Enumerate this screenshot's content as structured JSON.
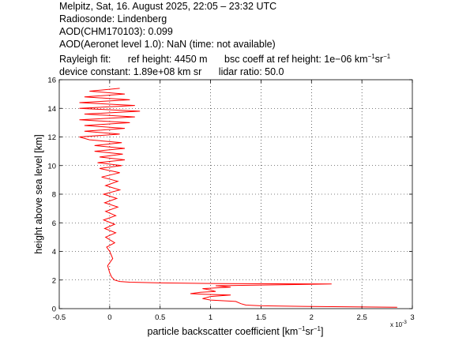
{
  "header": {
    "line1": "Melpitz, Sat, 16. August 2025, 22:05 – 23:32 UTC",
    "line2": "Radiosonde: Lindenberg",
    "line3": "AOD(CHM170103): 0.099",
    "line4": "AOD(Aeronet level 1.0): NaN   (time: not available)",
    "rayleigh_label": "Rayleigh fit:",
    "ref_height": "ref height: 4450 m",
    "bsc_coeff_prefix": "bsc coeff at ref height: 1e−06 km",
    "bsc_sup1": "−1",
    "bsc_mid": "sr",
    "bsc_sup2": "−1",
    "device_constant": "device constant: 1.89e+08 km sr",
    "lidar_ratio": "lidar ratio: 50.0"
  },
  "chart_data": {
    "type": "line",
    "xlabel_prefix": "particle backscatter coefficient [km",
    "xlabel_sup1": "−1",
    "xlabel_mid": "sr",
    "xlabel_sup2": "−1",
    "xlabel_suffix": "]",
    "ylabel": "height above sea level [km]",
    "x_exponent_base": "x 10",
    "x_exponent_power": "-3",
    "xlim": [
      -0.5,
      3
    ],
    "ylim": [
      0,
      16
    ],
    "xticks": [
      -0.5,
      0,
      0.5,
      1,
      1.5,
      2,
      2.5,
      3
    ],
    "xtick_labels": [
      "-0.5",
      "0",
      "0.5",
      "1",
      "1.5",
      "2",
      "2.5",
      "3"
    ],
    "yticks": [
      0,
      2,
      4,
      6,
      8,
      10,
      12,
      14,
      16
    ],
    "ytick_labels": [
      "0",
      "2",
      "4",
      "6",
      "8",
      "10",
      "12",
      "14",
      "16"
    ],
    "grid": true,
    "line_color": "#ff0000",
    "series": [
      {
        "points": [
          [
            2.85,
            0.1
          ],
          [
            2.0,
            0.15
          ],
          [
            1.5,
            0.2
          ],
          [
            1.35,
            0.25
          ],
          [
            1.3,
            0.35
          ],
          [
            1.25,
            0.5
          ],
          [
            1.0,
            0.6
          ],
          [
            0.92,
            0.7
          ],
          [
            1.0,
            0.85
          ],
          [
            1.2,
            0.95
          ],
          [
            0.95,
            1.0
          ],
          [
            0.8,
            1.05
          ],
          [
            0.9,
            1.15
          ],
          [
            1.05,
            1.2
          ],
          [
            1.0,
            1.3
          ],
          [
            0.92,
            1.4
          ],
          [
            1.2,
            1.5
          ],
          [
            1.05,
            1.6
          ],
          [
            2.2,
            1.72
          ],
          [
            1.1,
            1.75
          ],
          [
            0.5,
            1.8
          ],
          [
            0.2,
            1.85
          ],
          [
            0.1,
            1.9
          ],
          [
            0.05,
            2.0
          ],
          [
            0.02,
            2.2
          ],
          [
            0.0,
            2.5
          ],
          [
            -0.02,
            3.0
          ],
          [
            0.03,
            3.5
          ],
          [
            0.0,
            4.0
          ],
          [
            -0.03,
            4.3
          ],
          [
            0.05,
            4.6
          ],
          [
            -0.04,
            5.0
          ],
          [
            0.06,
            5.3
          ],
          [
            -0.05,
            5.6
          ],
          [
            0.05,
            5.9
          ],
          [
            -0.06,
            6.2
          ],
          [
            0.06,
            6.5
          ],
          [
            -0.04,
            6.8
          ],
          [
            0.08,
            7.1
          ],
          [
            -0.05,
            7.4
          ],
          [
            0.07,
            7.7
          ],
          [
            -0.06,
            8.0
          ],
          [
            0.1,
            8.3
          ],
          [
            -0.04,
            8.6
          ],
          [
            0.08,
            8.9
          ],
          [
            -0.08,
            9.2
          ],
          [
            0.1,
            9.5
          ],
          [
            -0.1,
            9.8
          ],
          [
            0.12,
            10.0
          ],
          [
            -0.12,
            10.2
          ],
          [
            0.15,
            10.4
          ],
          [
            -0.1,
            10.6
          ],
          [
            0.13,
            10.8
          ],
          [
            -0.15,
            11.0
          ],
          [
            0.15,
            11.2
          ],
          [
            -0.15,
            11.4
          ],
          [
            0.12,
            11.6
          ],
          [
            -0.2,
            11.8
          ],
          [
            -0.3,
            12.0
          ],
          [
            0.1,
            12.2
          ],
          [
            -0.25,
            12.4
          ],
          [
            0.15,
            12.6
          ],
          [
            -0.25,
            12.8
          ],
          [
            0.2,
            13.0
          ],
          [
            -0.3,
            13.2
          ],
          [
            0.25,
            13.4
          ],
          [
            -0.25,
            13.6
          ],
          [
            0.3,
            13.8
          ],
          [
            -0.3,
            14.0
          ],
          [
            0.25,
            14.2
          ],
          [
            -0.3,
            14.4
          ],
          [
            0.2,
            14.6
          ],
          [
            -0.25,
            14.8
          ],
          [
            0.15,
            15.0
          ],
          [
            -0.2,
            15.2
          ],
          [
            0.1,
            15.4
          ]
        ]
      }
    ]
  }
}
